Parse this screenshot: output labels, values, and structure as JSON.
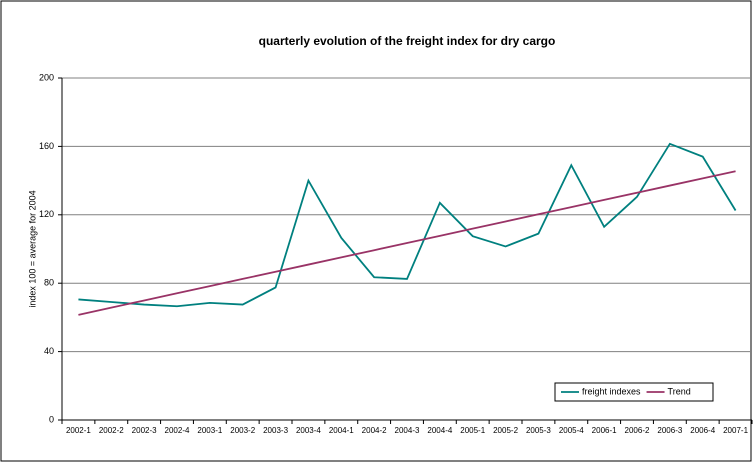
{
  "chart_data": {
    "type": "line",
    "title": "quarterly evolution of the freight index for dry cargo",
    "y_label": "index 100 =  average for 2004",
    "categories": [
      "2002-1",
      "2002-2",
      "2002-3",
      "2002-4",
      "2003-1",
      "2003-2",
      "2003-3",
      "2003-4",
      "2004-1",
      "2004-2",
      "2004-3",
      "2004-4",
      "2005-1",
      "2005-2",
      "2005-3",
      "2005-4",
      "2006-1",
      "2006-2",
      "2006-3",
      "2006-4",
      "2007-1"
    ],
    "series": [
      {
        "name": "freight indexes",
        "color": "#00807f",
        "values": [
          70.5,
          69,
          67.5,
          66.5,
          68.5,
          67.5,
          77.5,
          140,
          106.5,
          83.5,
          82.5,
          127,
          107.5,
          101.5,
          109,
          149,
          113,
          130.5,
          161.5,
          154,
          122.5
        ]
      },
      {
        "name": "Trend",
        "color": "#993366",
        "values": [
          61.5,
          65.7,
          69.9,
          74.1,
          78.3,
          82.5,
          86.7,
          90.9,
          95.1,
          99.3,
          103.5,
          107.7,
          111.9,
          116.1,
          120.3,
          124.5,
          128.7,
          132.9,
          137.1,
          141.3,
          145.5
        ]
      }
    ],
    "ylim": [
      0,
      200
    ],
    "yticks": [
      0,
      40,
      80,
      120,
      160,
      200
    ],
    "grid": true,
    "legend": "bottom-right"
  }
}
